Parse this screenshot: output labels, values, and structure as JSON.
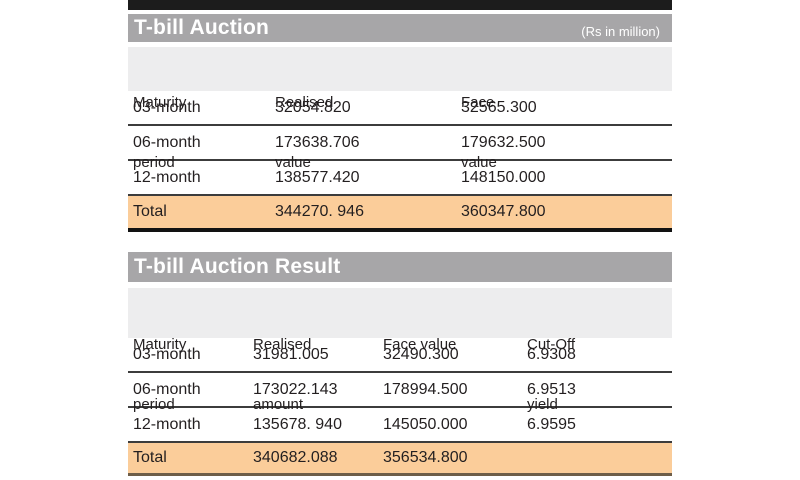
{
  "unit_note": "(Rs in million)",
  "colors": {
    "title_bar_bg": "#a7a6a8",
    "header_row_bg": "#ededee",
    "total_row_bg": "#fbcd9a",
    "top_rule": "#1c1c1c",
    "text": "#231f20",
    "title_text": "#ffffff"
  },
  "auction": {
    "title": "T-bill Auction",
    "columns": {
      "c1l1": "Maturity",
      "c1l2": "period",
      "c2l1": "Realised",
      "c2l2": "value",
      "c3l1": "Face",
      "c3l2": "value"
    },
    "rows": [
      {
        "period": "03-month",
        "realised": "32054.820",
        "face": "32565.300"
      },
      {
        "period": "06-month",
        "realised": "173638.706",
        "face": "179632.500"
      },
      {
        "period": "12-month",
        "realised": "138577.420",
        "face": "148150.000"
      }
    ],
    "total": {
      "label": "Total",
      "realised": "344270. 946",
      "face": "360347.800"
    }
  },
  "result": {
    "title": "T-bill Auction Result",
    "columns": {
      "c1l1": "Maturity",
      "c1l2": "period",
      "c2l1": "Realised",
      "c2l2": "amount",
      "c3l1": "Face value",
      "c3l2": "",
      "c4l1": "Cut-Off",
      "c4l2": "yield"
    },
    "rows": [
      {
        "period": "03-month",
        "realised": "31981.005",
        "face": "32490.300",
        "yield": "6.9308"
      },
      {
        "period": "06-month",
        "realised": "173022.143",
        "face": "178994.500",
        "yield": "6.9513"
      },
      {
        "period": "12-month",
        "realised": "135678. 940",
        "face": "145050.000",
        "yield": "6.9595"
      }
    ],
    "total": {
      "label": "Total",
      "realised": "340682.088",
      "face": "356534.800",
      "yield": ""
    }
  }
}
